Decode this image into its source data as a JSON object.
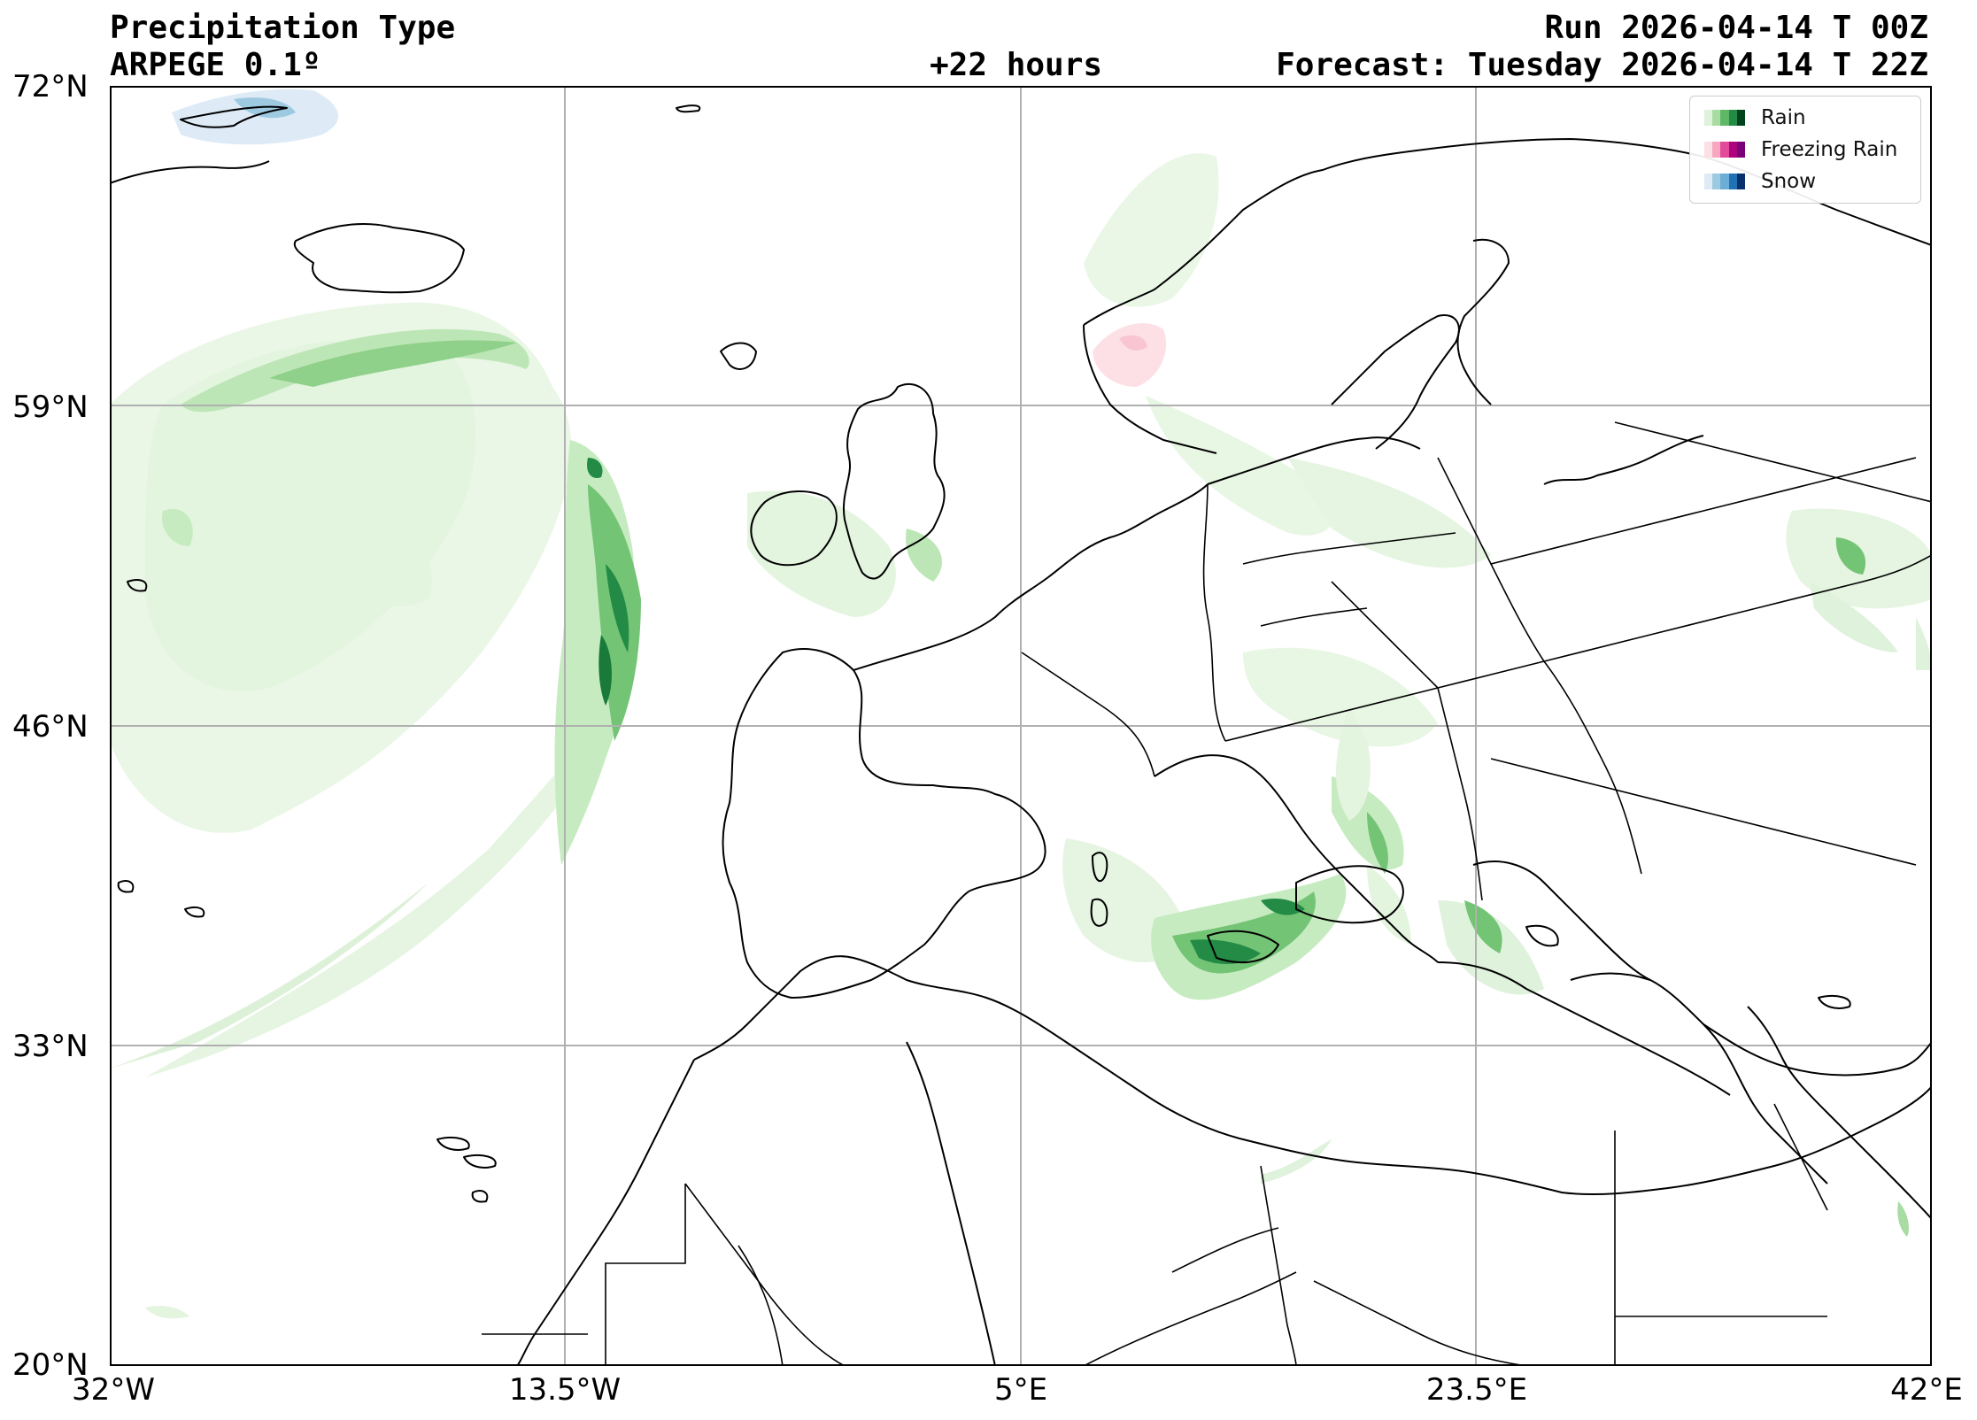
{
  "header": {
    "title": "Precipitation Type",
    "model": "ARPEGE 0.1º",
    "lead": "+22 hours",
    "run": "Run 2026-04-14 T 00Z",
    "forecast": "Forecast: Tuesday 2026-04-14 T 22Z"
  },
  "axes": {
    "lat_labels": [
      "72°N",
      "59°N",
      "46°N",
      "33°N",
      "20°N"
    ],
    "lon_labels": [
      "32°W",
      "13.5°W",
      "5°E",
      "23.5°E",
      "42°E"
    ]
  },
  "legend": {
    "rain_label": "Rain",
    "freezing_label": "Freezing Rain",
    "snow_label": "Snow",
    "rain_colors": [
      "#dff2dc",
      "#a8dca2",
      "#5fb866",
      "#238b45",
      "#00441b"
    ],
    "freezing_colors": [
      "#fde0e6",
      "#f7a8c0",
      "#e34a9b",
      "#ae017e",
      "#7a0177"
    ],
    "snow_colors": [
      "#deebf7",
      "#9ecae1",
      "#6baed6",
      "#2171b5",
      "#08306b"
    ]
  },
  "colors": {
    "gridline": "#b0b0b0",
    "coastline": "#000000",
    "background": "#ffffff"
  }
}
